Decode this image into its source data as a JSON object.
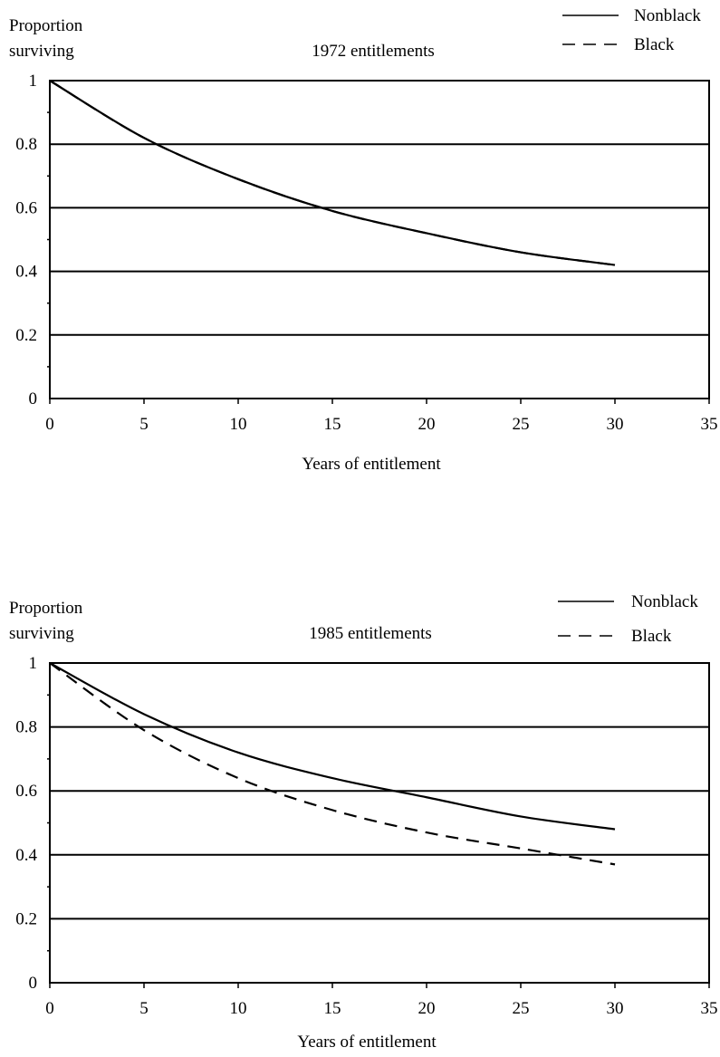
{
  "chart_data": [
    {
      "type": "line",
      "title": "1972 entitlements",
      "ylabel": [
        "Proportion",
        "surviving"
      ],
      "xlabel": "Years of entitlement",
      "xlim": [
        0,
        35
      ],
      "ylim": [
        0,
        1
      ],
      "xticks": [
        "0",
        "5",
        "10",
        "15",
        "20",
        "25",
        "30",
        "35"
      ],
      "yticks": [
        "0",
        "0.2",
        "0.4",
        "0.6",
        "0.8",
        "1"
      ],
      "grid": "horizontal",
      "legend_position": "top-right",
      "x": [
        0,
        5,
        10,
        15,
        20,
        25,
        30
      ],
      "series": [
        {
          "name": "Nonblack",
          "style": "solid",
          "values": [
            1.0,
            0.82,
            0.69,
            0.59,
            0.52,
            0.46,
            0.42
          ]
        },
        {
          "name": "Black",
          "style": "dashed",
          "values": [
            1.0,
            0.82,
            0.69,
            0.59,
            0.52,
            0.46,
            0.42
          ]
        }
      ]
    },
    {
      "type": "line",
      "title": "1985 entitlements",
      "ylabel": [
        "Proportion",
        "surviving"
      ],
      "xlabel": "Years of entitlement",
      "xlim": [
        0,
        35
      ],
      "ylim": [
        0,
        1
      ],
      "xticks": [
        "0",
        "5",
        "10",
        "15",
        "20",
        "25",
        "30",
        "35"
      ],
      "yticks": [
        "0",
        "0.2",
        "0.4",
        "0.6",
        "0.8",
        "1"
      ],
      "grid": "horizontal",
      "legend_position": "top-right",
      "x": [
        0,
        5,
        10,
        15,
        20,
        25,
        30
      ],
      "series": [
        {
          "name": "Nonblack",
          "style": "solid",
          "values": [
            1.0,
            0.84,
            0.72,
            0.64,
            0.58,
            0.52,
            0.48
          ]
        },
        {
          "name": "Black",
          "style": "dashed",
          "values": [
            1.0,
            0.79,
            0.64,
            0.54,
            0.47,
            0.42,
            0.37
          ]
        }
      ]
    }
  ]
}
